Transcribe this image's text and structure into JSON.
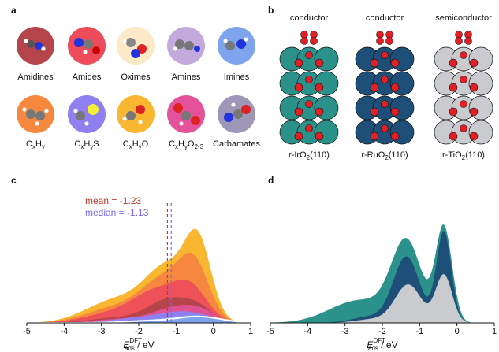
{
  "panel_letters": {
    "a": "a",
    "b": "b",
    "c": "c",
    "d": "d"
  },
  "molecules": [
    {
      "label": "Amidines",
      "color": "#b5454a"
    },
    {
      "label": "Amides",
      "color": "#ee4b5b"
    },
    {
      "label": "Oximes",
      "color": "#fde9c8"
    },
    {
      "label": "Amines",
      "color": "#c3a9dc"
    },
    {
      "label": "Imines",
      "color": "#7fa4ee"
    },
    {
      "label": "C",
      "label_parts": [
        "C",
        "x",
        "H",
        "y"
      ],
      "color": "#f5883e"
    },
    {
      "label": "C",
      "label_parts": [
        "C",
        "x",
        "H",
        "y",
        "S"
      ],
      "color": "#8f7ff0"
    },
    {
      "label": "C",
      "label_parts": [
        "C",
        "x",
        "H",
        "y",
        "O"
      ],
      "color": "#f9b731"
    },
    {
      "label": "C",
      "label_parts": [
        "C",
        "x",
        "H",
        "y",
        "O",
        "2-3"
      ],
      "color": "#e3529b"
    },
    {
      "label": "Carbamates",
      "color": "#9e97b8"
    }
  ],
  "surfaces": [
    {
      "type": "conductor",
      "name": "r-IrO",
      "sub": "2",
      "facet": "(110)",
      "color": "#2a928a"
    },
    {
      "type": "conductor",
      "name": "r-RuO",
      "sub": "2",
      "facet": "(110)",
      "color": "#1d4f78"
    },
    {
      "type": "semiconductor",
      "name": "r-TiO",
      "sub": "2",
      "facet": "(110)",
      "color": "#c9cbcf"
    }
  ],
  "chart_data": [
    {
      "panel": "c",
      "type": "area",
      "xlim": [
        -5,
        1
      ],
      "x_ticks": [
        -5,
        -4,
        -3,
        -2,
        -1,
        0,
        1
      ],
      "xlabel": "E",
      "xlabel_sup": "DFT",
      "xlabel_sub": "ads",
      "xlabel_unit": " / eV",
      "annotations": [
        {
          "text": "mean = -1.23",
          "value": -1.23,
          "color": "#c0392b"
        },
        {
          "text": "median = -1.13",
          "value": -1.13,
          "color": "#7b68ee"
        }
      ],
      "series_colors": [
        "#f9b731",
        "#f5883e",
        "#ee4b5b",
        "#b5454a",
        "#e3529b",
        "#8f7ff0",
        "#7fa4ee",
        "#ffffff"
      ]
    },
    {
      "panel": "d",
      "type": "area",
      "xlim": [
        -5,
        1
      ],
      "x_ticks": [
        -5,
        -4,
        -3,
        -2,
        -1,
        0,
        1
      ],
      "xlabel": "E",
      "xlabel_sup": "DFT",
      "xlabel_sub": "ads",
      "xlabel_unit": " / eV",
      "series_colors": [
        "#2a928a",
        "#1d4f78",
        "#c9cbcf"
      ]
    }
  ]
}
